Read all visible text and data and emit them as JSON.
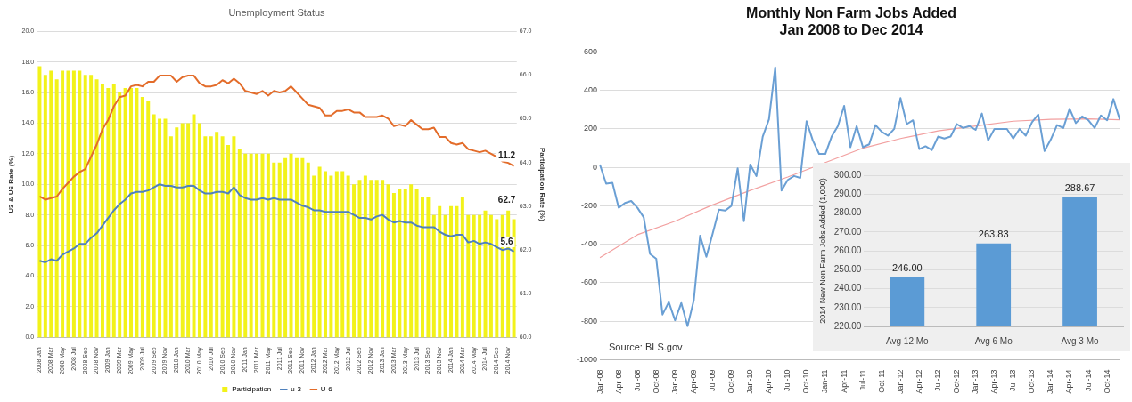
{
  "chart_data": [
    {
      "type": "bar",
      "title": "Unemployment Status",
      "ylabel": "U3 & U6 Rate (%)",
      "y2label": "Participation Rate (%)",
      "categories": [
        "2008 Jan",
        null,
        "2008 Mar",
        null,
        "2008 May",
        null,
        "2008 Jul",
        null,
        "2008 Sep",
        null,
        "2008 Nov",
        null,
        "2009 Jan",
        null,
        "2009 Mar",
        null,
        "2009 May",
        null,
        "2009 Jul",
        null,
        "2009 Sep",
        null,
        "2009 Nov",
        null,
        "2010 Jan",
        null,
        "2010 Mar",
        null,
        "2010 May",
        null,
        "2010 Jul",
        null,
        "2010 Sep",
        null,
        "2010 Nov",
        null,
        "2011 Jan",
        null,
        "2011 Mar",
        null,
        "2011 May",
        null,
        "2011 Jul",
        null,
        "2011 Sep",
        null,
        "2011 Nov",
        null,
        "2012 Jan",
        null,
        "2012 Mar",
        null,
        "2012 May",
        null,
        "2012 Jul",
        null,
        "2012 Sep",
        null,
        "2012 Nov",
        null,
        "2013 Jan",
        null,
        "2013 Mar",
        null,
        "2013 May",
        null,
        "2013 Jul",
        null,
        "2013 Sep",
        null,
        "2013 Nov",
        null,
        "2014 Jan",
        null,
        "2014 Mar",
        null,
        "2014 May",
        null,
        "2014 Jul",
        null,
        "2014 Sep",
        null,
        "2014 Nov",
        null
      ],
      "series": [
        {
          "name": "Participation",
          "type": "bar",
          "axis": "y2",
          "color": "#f2f21a",
          "values": [
            66.2,
            66.0,
            66.1,
            65.9,
            66.1,
            66.1,
            66.1,
            66.1,
            66.0,
            66.0,
            65.9,
            65.8,
            65.7,
            65.8,
            65.6,
            65.7,
            65.7,
            65.7,
            65.5,
            65.4,
            65.1,
            65.0,
            65.0,
            64.6,
            64.8,
            64.9,
            64.9,
            65.1,
            64.9,
            64.6,
            64.6,
            64.7,
            64.6,
            64.4,
            64.6,
            64.3,
            64.2,
            64.2,
            64.2,
            64.2,
            64.2,
            64.0,
            64.0,
            64.1,
            64.2,
            64.1,
            64.1,
            64.0,
            63.7,
            63.9,
            63.8,
            63.7,
            63.8,
            63.8,
            63.7,
            63.5,
            63.6,
            63.7,
            63.6,
            63.6,
            63.6,
            63.5,
            63.3,
            63.4,
            63.4,
            63.5,
            63.4,
            63.2,
            63.2,
            62.8,
            63.0,
            62.8,
            63.0,
            63.0,
            63.2,
            62.8,
            62.8,
            62.8,
            62.9,
            62.8,
            62.7,
            62.8,
            62.9,
            62.7
          ],
          "value_labels": [
            null,
            null,
            null,
            null,
            null,
            null,
            null,
            null,
            null,
            null,
            null,
            null,
            null,
            null,
            null,
            null,
            null,
            null,
            null,
            null,
            null,
            null,
            null,
            null,
            null,
            null,
            null,
            null,
            null,
            null,
            null,
            null,
            null,
            null,
            null,
            null,
            null,
            null,
            null,
            null,
            null,
            null,
            null,
            null,
            null,
            null,
            null,
            null,
            null,
            null,
            null,
            null,
            null,
            null,
            null,
            null,
            null,
            null,
            null,
            null,
            null,
            null,
            null,
            null,
            null,
            null,
            null,
            null,
            null,
            null,
            null,
            null,
            null,
            null,
            null,
            null,
            null,
            null,
            null,
            null,
            null,
            null,
            null,
            "62.7"
          ]
        },
        {
          "name": "u-3",
          "type": "line",
          "color": "#4f81bd",
          "values": [
            5.0,
            4.9,
            5.1,
            5.0,
            5.4,
            5.6,
            5.8,
            6.1,
            6.1,
            6.5,
            6.8,
            7.3,
            7.8,
            8.3,
            8.7,
            9.0,
            9.4,
            9.5,
            9.5,
            9.6,
            9.8,
            10.0,
            9.9,
            9.9,
            9.8,
            9.8,
            9.9,
            9.9,
            9.6,
            9.4,
            9.4,
            9.5,
            9.5,
            9.4,
            9.8,
            9.3,
            9.1,
            9.0,
            9.0,
            9.1,
            9.0,
            9.1,
            9.0,
            9.0,
            9.0,
            8.8,
            8.6,
            8.5,
            8.3,
            8.3,
            8.2,
            8.2,
            8.2,
            8.2,
            8.2,
            8.0,
            7.8,
            7.8,
            7.7,
            7.9,
            8.0,
            7.7,
            7.5,
            7.6,
            7.5,
            7.5,
            7.3,
            7.2,
            7.2,
            7.2,
            6.9,
            6.7,
            6.6,
            6.7,
            6.7,
            6.2,
            6.3,
            6.1,
            6.2,
            6.1,
            5.9,
            5.7,
            5.8,
            5.6
          ],
          "value_labels": [
            null,
            null,
            null,
            null,
            null,
            null,
            null,
            null,
            null,
            null,
            null,
            null,
            null,
            null,
            null,
            null,
            null,
            null,
            null,
            null,
            null,
            null,
            null,
            null,
            null,
            null,
            null,
            null,
            null,
            null,
            null,
            null,
            null,
            null,
            null,
            null,
            null,
            null,
            null,
            null,
            null,
            null,
            null,
            null,
            null,
            null,
            null,
            null,
            null,
            null,
            null,
            null,
            null,
            null,
            null,
            null,
            null,
            null,
            null,
            null,
            null,
            null,
            null,
            null,
            null,
            null,
            null,
            null,
            null,
            null,
            null,
            null,
            null,
            null,
            null,
            null,
            null,
            null,
            null,
            null,
            null,
            null,
            null,
            "5.6"
          ]
        },
        {
          "name": "U-6",
          "type": "line",
          "color": "#e36c2a",
          "values": [
            9.2,
            9.0,
            9.1,
            9.2,
            9.7,
            10.1,
            10.5,
            10.8,
            11.0,
            11.8,
            12.6,
            13.6,
            14.2,
            15.1,
            15.7,
            15.8,
            16.4,
            16.5,
            16.4,
            16.7,
            16.7,
            17.1,
            17.1,
            17.1,
            16.7,
            17.0,
            17.1,
            17.1,
            16.6,
            16.4,
            16.4,
            16.5,
            16.8,
            16.6,
            16.9,
            16.6,
            16.1,
            16.0,
            15.9,
            16.1,
            15.8,
            16.1,
            16.0,
            16.1,
            16.4,
            16.0,
            15.6,
            15.2,
            15.1,
            15.0,
            14.5,
            14.5,
            14.8,
            14.8,
            14.9,
            14.7,
            14.7,
            14.4,
            14.4,
            14.4,
            14.5,
            14.3,
            13.8,
            13.9,
            13.8,
            14.2,
            13.9,
            13.6,
            13.6,
            13.7,
            13.1,
            13.1,
            12.7,
            12.6,
            12.7,
            12.3,
            12.2,
            12.1,
            12.2,
            12.0,
            11.8,
            11.5,
            11.4,
            11.2
          ],
          "value_labels": [
            null,
            null,
            null,
            null,
            null,
            null,
            null,
            null,
            null,
            null,
            null,
            null,
            null,
            null,
            null,
            null,
            null,
            null,
            null,
            null,
            null,
            null,
            null,
            null,
            null,
            null,
            null,
            null,
            null,
            null,
            null,
            null,
            null,
            null,
            null,
            null,
            null,
            null,
            null,
            null,
            null,
            null,
            null,
            null,
            null,
            null,
            null,
            null,
            null,
            null,
            null,
            null,
            null,
            null,
            null,
            null,
            null,
            null,
            null,
            null,
            null,
            null,
            null,
            null,
            null,
            null,
            null,
            null,
            null,
            null,
            null,
            null,
            null,
            null,
            null,
            null,
            null,
            null,
            null,
            null,
            null,
            null,
            null,
            "11.2"
          ]
        }
      ],
      "ylim": [
        0,
        20
      ],
      "yticks": [
        {
          "value": 0,
          "label": "0.0"
        },
        {
          "value": 2,
          "label": "2.0"
        },
        {
          "value": 4,
          "label": "4.0"
        },
        {
          "value": 6,
          "label": "6.0"
        },
        {
          "value": 8,
          "label": "8.0"
        },
        {
          "value": 10,
          "label": "10.0"
        },
        {
          "value": 12,
          "label": "12.0"
        },
        {
          "value": 14,
          "label": "14.0"
        },
        {
          "value": 16,
          "label": "16.0"
        },
        {
          "value": 18,
          "label": "18.0"
        },
        {
          "value": 20,
          "label": "20.0"
        }
      ],
      "y2lim": [
        60,
        67
      ],
      "y2ticks": [
        {
          "value": 60,
          "label": "60.0"
        },
        {
          "value": 61,
          "label": "61.0"
        },
        {
          "value": 62,
          "label": "62.0"
        },
        {
          "value": 63,
          "label": "63.0"
        },
        {
          "value": 64,
          "label": "64.0"
        },
        {
          "value": 65,
          "label": "65.0"
        },
        {
          "value": 66,
          "label": "66.0"
        },
        {
          "value": 67,
          "label": "67.0"
        }
      ],
      "grid": "y",
      "legend": "bottom",
      "marker": "none"
    },
    {
      "type": "line",
      "title": "Monthly Non Farm Jobs Added",
      "subtitle": "Jan 2008 to Dec 2014",
      "categories": [
        "Jan-08",
        null,
        null,
        "Apr-08",
        null,
        null,
        "Jul-08",
        null,
        null,
        "Oct-08",
        null,
        null,
        "Jan-09",
        null,
        null,
        "Apr-09",
        null,
        null,
        "Jul-09",
        null,
        null,
        "Oct-09",
        null,
        null,
        "Jan-10",
        null,
        null,
        "Apr-10",
        null,
        null,
        "Jul-10",
        null,
        null,
        "Oct-10",
        null,
        null,
        "Jan-11",
        null,
        null,
        "Apr-11",
        null,
        null,
        "Jul-11",
        null,
        null,
        "Oct-11",
        null,
        null,
        "Jan-12",
        null,
        null,
        "Apr-12",
        null,
        null,
        "Jul-12",
        null,
        null,
        "Oct-12",
        null,
        null,
        "Jan-13",
        null,
        null,
        "Apr-13",
        null,
        null,
        "Jul-13",
        null,
        null,
        "Oct-13",
        null,
        null,
        "Jan-14",
        null,
        null,
        "Apr-14",
        null,
        null,
        "Jul-14",
        null,
        null,
        "Oct-14",
        null,
        null
      ],
      "series": [
        {
          "color": "#6a9fd4",
          "values": [
            15,
            -85,
            -80,
            -210,
            -185,
            -175,
            -210,
            -260,
            -450,
            -475,
            -765,
            -700,
            -795,
            -705,
            -825,
            -690,
            -355,
            -465,
            -345,
            -220,
            -225,
            -200,
            -5,
            -280,
            15,
            -45,
            160,
            250,
            520,
            -120,
            -65,
            -45,
            -55,
            240,
            140,
            70,
            70,
            160,
            215,
            320,
            105,
            215,
            105,
            120,
            220,
            185,
            165,
            200,
            360,
            225,
            245,
            95,
            110,
            90,
            160,
            150,
            160,
            225,
            205,
            215,
            195,
            280,
            140,
            200,
            200,
            200,
            150,
            200,
            165,
            235,
            275,
            85,
            145,
            220,
            205,
            305,
            230,
            265,
            245,
            205,
            270,
            245,
            355,
            250
          ]
        },
        {
          "color": "#f2a0a0",
          "values": [
            -470,
            null,
            null,
            null,
            null,
            null,
            -350,
            null,
            null,
            null,
            null,
            null,
            -280,
            null,
            null,
            null,
            null,
            null,
            -195,
            null,
            null,
            null,
            null,
            null,
            -120,
            null,
            null,
            null,
            null,
            null,
            -50,
            null,
            null,
            null,
            null,
            null,
            null,
            null,
            null,
            null,
            null,
            null,
            100,
            null,
            null,
            null,
            null,
            null,
            150,
            null,
            null,
            null,
            null,
            null,
            190,
            null,
            null,
            null,
            null,
            null,
            215,
            null,
            null,
            null,
            null,
            null,
            240,
            null,
            null,
            null,
            null,
            null,
            250,
            null,
            null,
            null,
            null,
            null,
            252,
            null,
            null,
            null,
            null,
            248
          ]
        }
      ],
      "ylim": [
        -1000,
        600
      ],
      "yticks": [
        -1000,
        -800,
        -600,
        -400,
        -200,
        0,
        200,
        400,
        600
      ],
      "annotations": [
        "Source: BLS.gov"
      ],
      "grid": "y",
      "legend": false,
      "marker": "none"
    },
    {
      "type": "bar",
      "ylabel": "2014 New Non Farm Jobs Added (1,000)",
      "categories": [
        "Avg 12 Mo",
        "Avg 6 Mo",
        "Avg 3 Mo"
      ],
      "series": [
        {
          "color": "#5b9bd5",
          "values": [
            246.0,
            263.83,
            288.67
          ],
          "value_labels": [
            "246.00",
            "263.83",
            "288.67"
          ]
        }
      ],
      "ylim": [
        220,
        300
      ],
      "yticks": [
        {
          "value": 220,
          "label": "220.00"
        },
        {
          "value": 230,
          "label": "230.00"
        },
        {
          "value": 240,
          "label": "240.00"
        },
        {
          "value": 250,
          "label": "250.00"
        },
        {
          "value": 260,
          "label": "260.00"
        },
        {
          "value": 270,
          "label": "270.00"
        },
        {
          "value": 280,
          "label": "280.00"
        },
        {
          "value": 290,
          "label": "290.00"
        },
        {
          "value": 300,
          "label": "300.00"
        }
      ],
      "grid": "y",
      "legend": false
    }
  ]
}
